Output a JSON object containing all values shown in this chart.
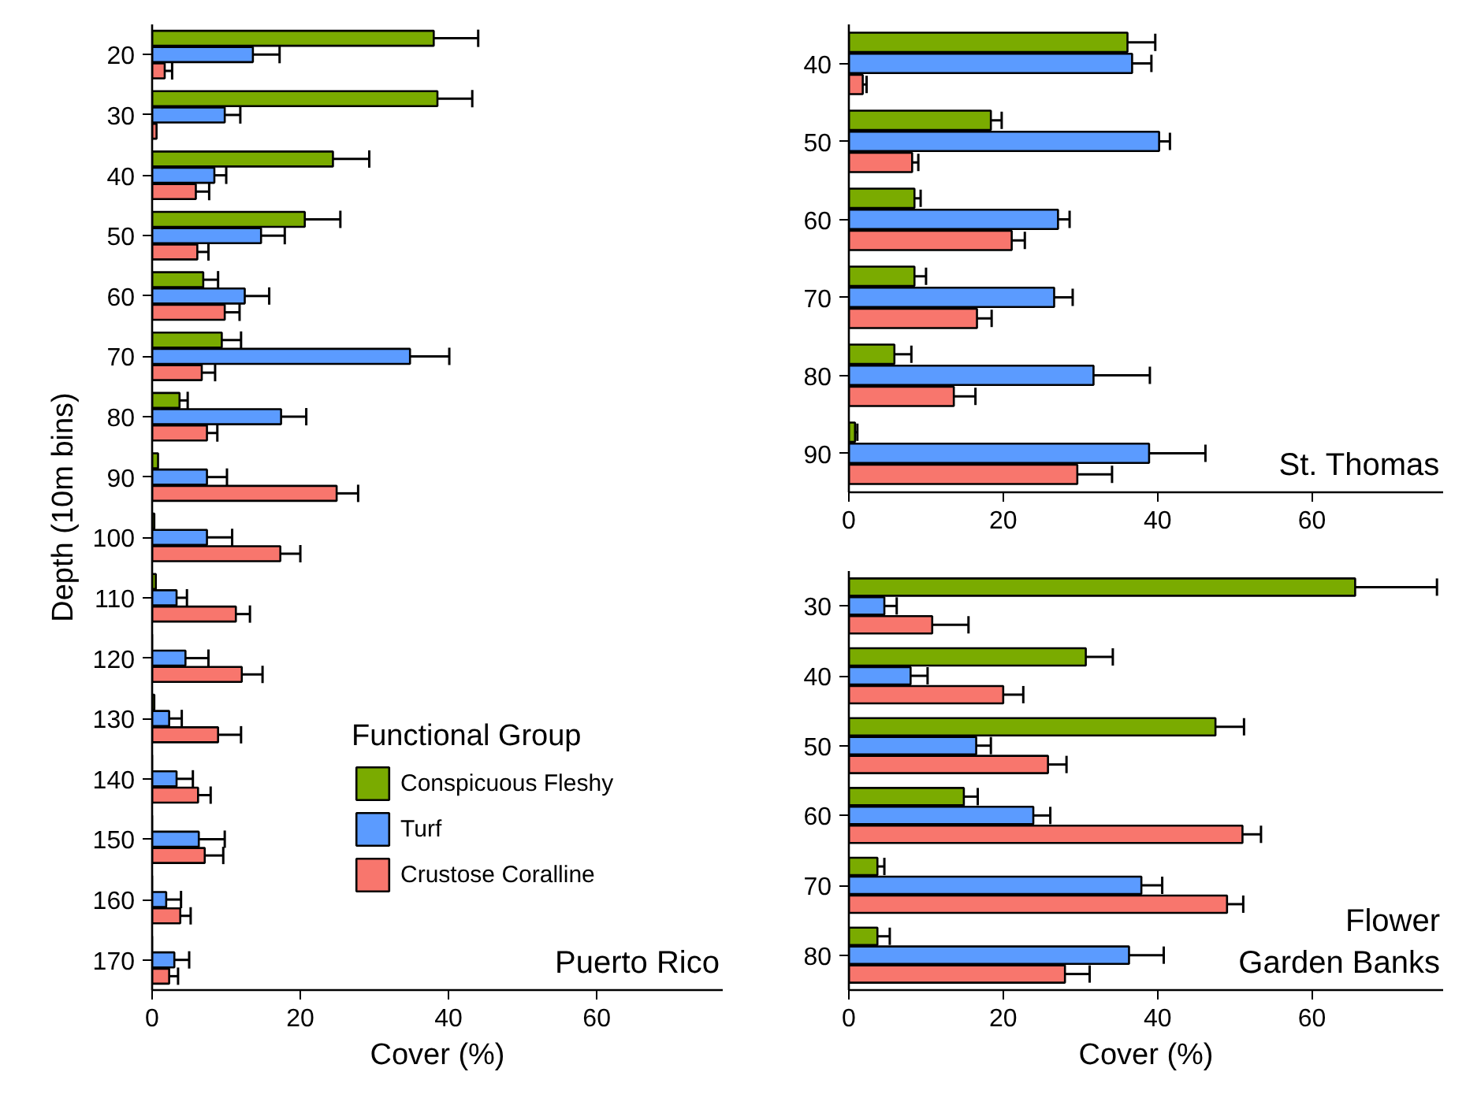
{
  "chart_data": [
    {
      "type": "bar",
      "orientation": "horizontal",
      "title": "Puerto Rico",
      "xlabel": "Cover (%)",
      "ylabel": "Depth (10m bins)",
      "legend": "bottom right",
      "legend_title": "Functional Group",
      "xlim": [
        0,
        77
      ],
      "xticks": [
        0,
        20,
        40,
        60
      ],
      "categories": [
        "20",
        "30",
        "40",
        "50",
        "60",
        "70",
        "80",
        "90",
        "100",
        "110",
        "120",
        "130",
        "140",
        "150",
        "160",
        "170"
      ],
      "series": [
        {
          "name": "Conspicuous Fleshy",
          "color": "#7aab00",
          "values": [
            38.0,
            38.5,
            24.4,
            20.6,
            6.9,
            9.4,
            3.7,
            0.8,
            0.3,
            0.5,
            0,
            0.3,
            0,
            0,
            0,
            0
          ],
          "errors": [
            [
              38.0,
              44.0
            ],
            [
              38.5,
              43.2
            ],
            [
              24.4,
              29.3
            ],
            [
              20.6,
              25.4
            ],
            [
              6.9,
              8.9
            ],
            [
              9.4,
              12.0
            ],
            [
              3.7,
              4.8
            ],
            null,
            null,
            null,
            null,
            null,
            null,
            null,
            null,
            null
          ]
        },
        {
          "name": "Turf",
          "color": "#5b9bff",
          "values": [
            13.6,
            9.8,
            8.4,
            14.7,
            12.5,
            34.8,
            17.4,
            7.4,
            7.4,
            3.3,
            4.5,
            2.3,
            3.3,
            6.3,
            1.9,
            3.0
          ],
          "errors": [
            [
              13.6,
              17.2
            ],
            [
              9.8,
              11.9
            ],
            [
              8.4,
              10.0
            ],
            [
              14.7,
              17.9
            ],
            [
              12.5,
              15.8
            ],
            [
              34.8,
              40.1
            ],
            [
              17.4,
              20.8
            ],
            [
              7.4,
              10.1
            ],
            [
              7.4,
              10.8
            ],
            [
              3.3,
              4.7
            ],
            [
              4.5,
              7.6
            ],
            [
              2.3,
              4.0
            ],
            [
              3.3,
              5.5
            ],
            [
              6.3,
              9.8
            ],
            [
              1.9,
              3.9
            ],
            [
              3.0,
              5.0
            ]
          ]
        },
        {
          "name": "Crustose Coralline",
          "color": "#f8766d",
          "values": [
            1.7,
            0.6,
            5.9,
            6.1,
            9.8,
            6.7,
            7.4,
            24.9,
            17.3,
            11.3,
            12.1,
            8.9,
            6.2,
            7.1,
            3.8,
            2.3
          ],
          "errors": [
            [
              1.7,
              2.7
            ],
            null,
            [
              5.9,
              7.7
            ],
            [
              6.1,
              7.6
            ],
            [
              9.8,
              11.8
            ],
            [
              6.7,
              8.5
            ],
            [
              7.4,
              8.8
            ],
            [
              24.9,
              27.8
            ],
            [
              17.3,
              20.0
            ],
            [
              11.3,
              13.2
            ],
            [
              12.1,
              14.9
            ],
            [
              8.9,
              12.0
            ],
            [
              6.2,
              7.9
            ],
            [
              7.1,
              9.6
            ],
            [
              3.8,
              5.2
            ],
            [
              2.3,
              3.5
            ]
          ]
        }
      ]
    },
    {
      "type": "bar",
      "orientation": "horizontal",
      "title": "St. Thomas",
      "xlim": [
        0,
        77
      ],
      "xticks": [
        0,
        20,
        40,
        60
      ],
      "categories": [
        "40",
        "50",
        "60",
        "70",
        "80",
        "90"
      ],
      "series": [
        {
          "color": "#7aab00",
          "values": [
            36.1,
            18.4,
            8.5,
            8.5,
            5.9,
            0.8
          ],
          "errors": [
            [
              36.1,
              39.7
            ],
            [
              18.4,
              19.8
            ],
            [
              8.5,
              9.3
            ],
            [
              8.5,
              10.0
            ],
            [
              5.9,
              8.1
            ],
            [
              0.8,
              1.1
            ]
          ]
        },
        {
          "color": "#5b9bff",
          "values": [
            36.7,
            40.2,
            27.1,
            26.6,
            31.7,
            38.9
          ],
          "errors": [
            [
              36.7,
              39.2
            ],
            [
              40.2,
              41.6
            ],
            [
              27.1,
              28.6
            ],
            [
              26.6,
              29.0
            ],
            [
              31.7,
              39.0
            ],
            [
              38.9,
              46.2
            ]
          ]
        },
        {
          "color": "#f8766d",
          "values": [
            1.8,
            8.2,
            21.1,
            16.6,
            13.6,
            29.6
          ],
          "errors": [
            [
              1.8,
              2.3
            ],
            [
              8.2,
              9.0
            ],
            [
              21.1,
              22.8
            ],
            [
              16.6,
              18.5
            ],
            [
              13.6,
              16.4
            ],
            [
              29.6,
              34.1
            ]
          ]
        }
      ]
    },
    {
      "type": "bar",
      "orientation": "horizontal",
      "title": "Flower Garden Banks",
      "xlabel": "Cover (%)",
      "xlim": [
        0,
        77
      ],
      "xticks": [
        0,
        20,
        40,
        60
      ],
      "categories": [
        "30",
        "40",
        "50",
        "60",
        "70",
        "80"
      ],
      "series": [
        {
          "color": "#7aab00",
          "values": [
            65.6,
            30.7,
            47.5,
            14.9,
            3.7,
            3.7
          ],
          "errors": [
            [
              65.6,
              76.2
            ],
            [
              30.7,
              34.2
            ],
            [
              47.5,
              51.2
            ],
            [
              14.9,
              16.7
            ],
            [
              3.7,
              4.6
            ],
            [
              3.7,
              5.3
            ]
          ]
        },
        {
          "color": "#5b9bff",
          "values": [
            4.6,
            8.0,
            16.5,
            23.9,
            37.9,
            36.3
          ],
          "errors": [
            [
              4.6,
              6.2
            ],
            [
              8.0,
              10.2
            ],
            [
              16.5,
              18.4
            ],
            [
              23.9,
              26.1
            ],
            [
              37.9,
              40.6
            ],
            [
              36.3,
              40.8
            ]
          ]
        },
        {
          "color": "#f8766d",
          "values": [
            10.8,
            20.0,
            25.8,
            51.0,
            49.0,
            28.0
          ],
          "errors": [
            [
              10.8,
              15.5
            ],
            [
              20.0,
              22.6
            ],
            [
              25.8,
              28.2
            ],
            [
              51.0,
              53.4
            ],
            [
              49.0,
              51.1
            ],
            [
              28.0,
              31.2
            ]
          ]
        }
      ]
    }
  ]
}
